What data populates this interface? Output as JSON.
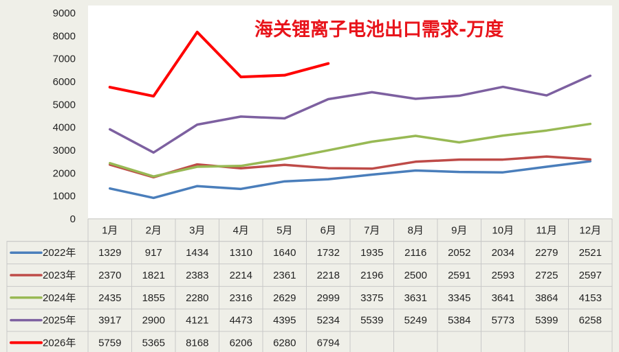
{
  "chart_data": {
    "type": "line",
    "title": "海关锂离子电池出口需求-万度",
    "categories": [
      "1月",
      "2月",
      "3月",
      "4月",
      "5月",
      "6月",
      "7月",
      "8月",
      "9月",
      "10月",
      "11月",
      "12月"
    ],
    "ylim": [
      0,
      9000
    ],
    "yticks": [
      0,
      1000,
      2000,
      3000,
      4000,
      5000,
      6000,
      7000,
      8000,
      9000
    ],
    "grid": false,
    "legend": "data-table",
    "series": [
      {
        "name": "2022年",
        "color": "#4a7ebb",
        "values": [
          1329,
          917,
          1434,
          1310,
          1640,
          1732,
          1935,
          2116,
          2052,
          2034,
          2279,
          2521
        ]
      },
      {
        "name": "2023年",
        "color": "#be4b48",
        "values": [
          2370,
          1821,
          2383,
          2214,
          2361,
          2218,
          2196,
          2500,
          2591,
          2593,
          2725,
          2597
        ]
      },
      {
        "name": "2024年",
        "color": "#98b954",
        "values": [
          2435,
          1855,
          2280,
          2316,
          2629,
          2999,
          3375,
          3631,
          3345,
          3641,
          3864,
          4153
        ]
      },
      {
        "name": "2025年",
        "color": "#7d60a0",
        "values": [
          3917,
          2900,
          4121,
          4473,
          4395,
          5234,
          5539,
          5249,
          5384,
          5773,
          5399,
          6258
        ]
      },
      {
        "name": "2026年",
        "color": "#ff0000",
        "values": [
          5759,
          5365,
          8168,
          6206,
          6280,
          6794,
          null,
          null,
          null,
          null,
          null,
          null
        ]
      }
    ]
  }
}
